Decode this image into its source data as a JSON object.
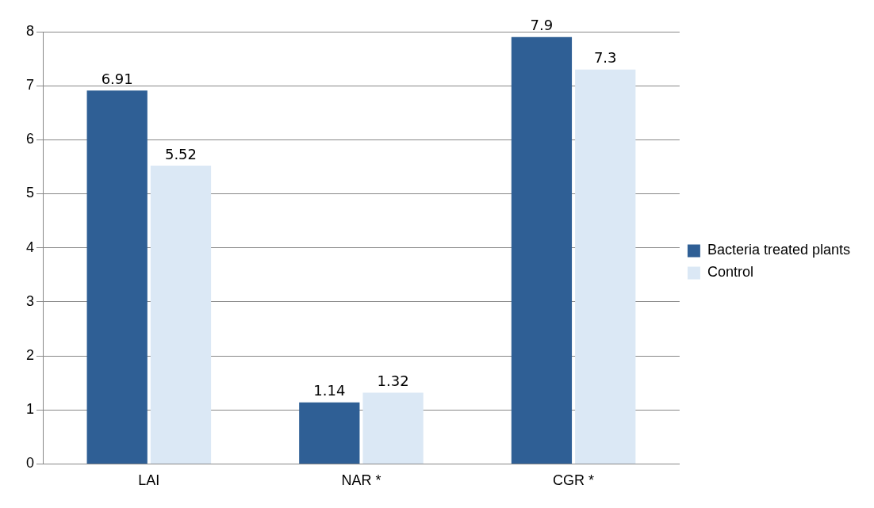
{
  "chart_data": {
    "type": "bar",
    "categories": [
      "LAI",
      "NAR *",
      "CGR *"
    ],
    "series": [
      {
        "name": "Bacteria treated plants",
        "color": "#2f5f95",
        "values": [
          6.91,
          1.14,
          7.9
        ]
      },
      {
        "name": "Control",
        "color": "#dbe8f5",
        "values": [
          5.52,
          1.32,
          7.3
        ]
      }
    ],
    "ylim": [
      0,
      8
    ],
    "yticks": [
      0,
      1,
      2,
      3,
      4,
      5,
      6,
      7,
      8
    ],
    "grid": "y",
    "legend": "right",
    "data_labels": true
  }
}
